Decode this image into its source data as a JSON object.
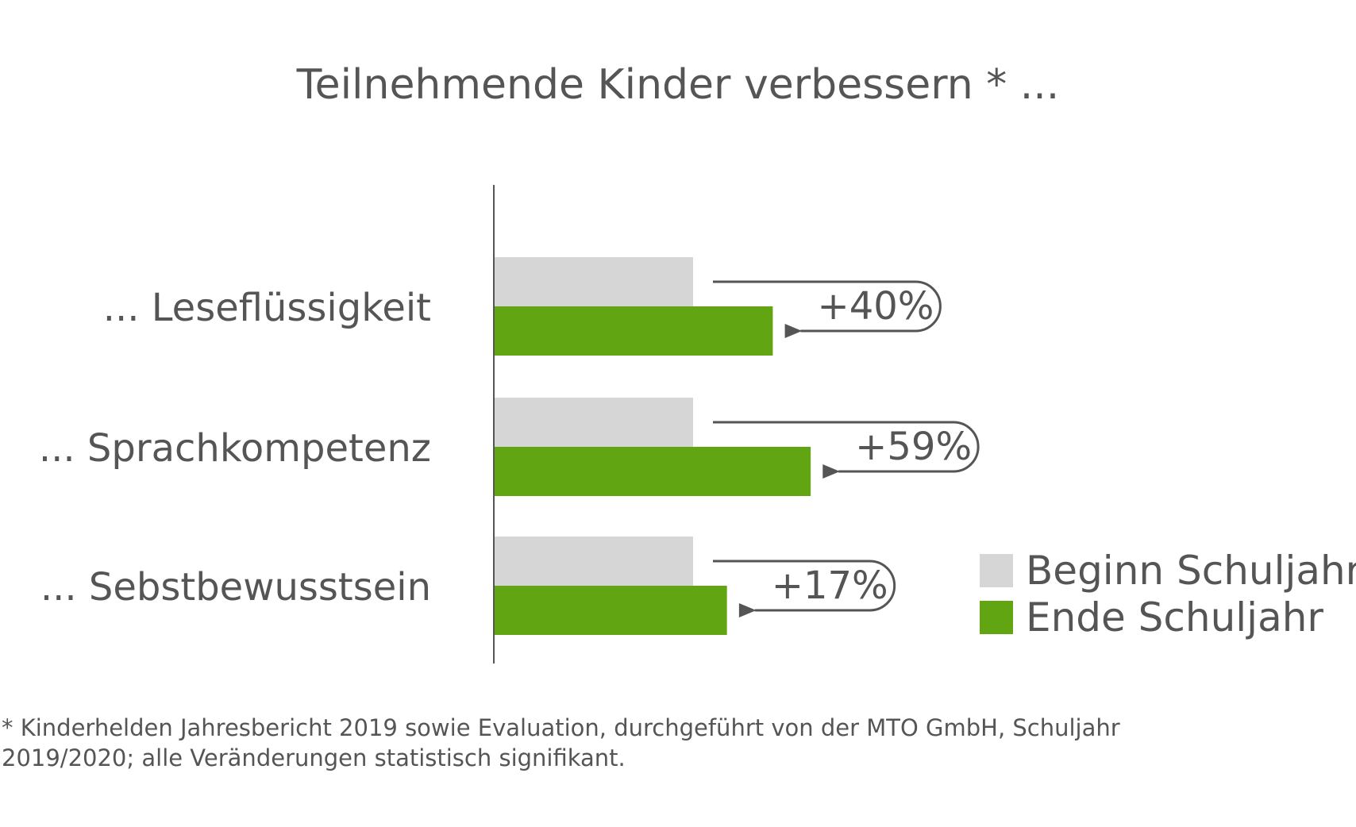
{
  "chart_data": {
    "type": "bar",
    "orientation": "horizontal",
    "title": "Teilnehmende Kinder verbessern * ...",
    "categories": [
      "... Leseflüssigkeit",
      "... Sprachkompetenz",
      "... Sebstbewusstsein"
    ],
    "series": [
      {
        "name": "Beginn Schuljahr",
        "color": "#d6d6d6",
        "values": [
          100,
          100,
          100
        ]
      },
      {
        "name": "Ende Schuljahr",
        "color": "#62a512",
        "values": [
          140,
          159,
          117
        ]
      }
    ],
    "annotations": [
      "+40%",
      "+59%",
      "+17%"
    ],
    "legend_position": "bottom-right",
    "grid": false,
    "axis_ticks": false
  },
  "footnote": {
    "line1": "* Kinderhelden Jahresbericht 2019 sowie Evaluation, durchgeführt von der MTO GmbH, Schuljahr",
    "line2": "2019/2020; alle Veränderungen statistisch signifikant."
  },
  "colors": {
    "text": "#555555",
    "axis": "#555555",
    "arrow": "#555555",
    "begin": "#d6d6d6",
    "end": "#62a512"
  }
}
